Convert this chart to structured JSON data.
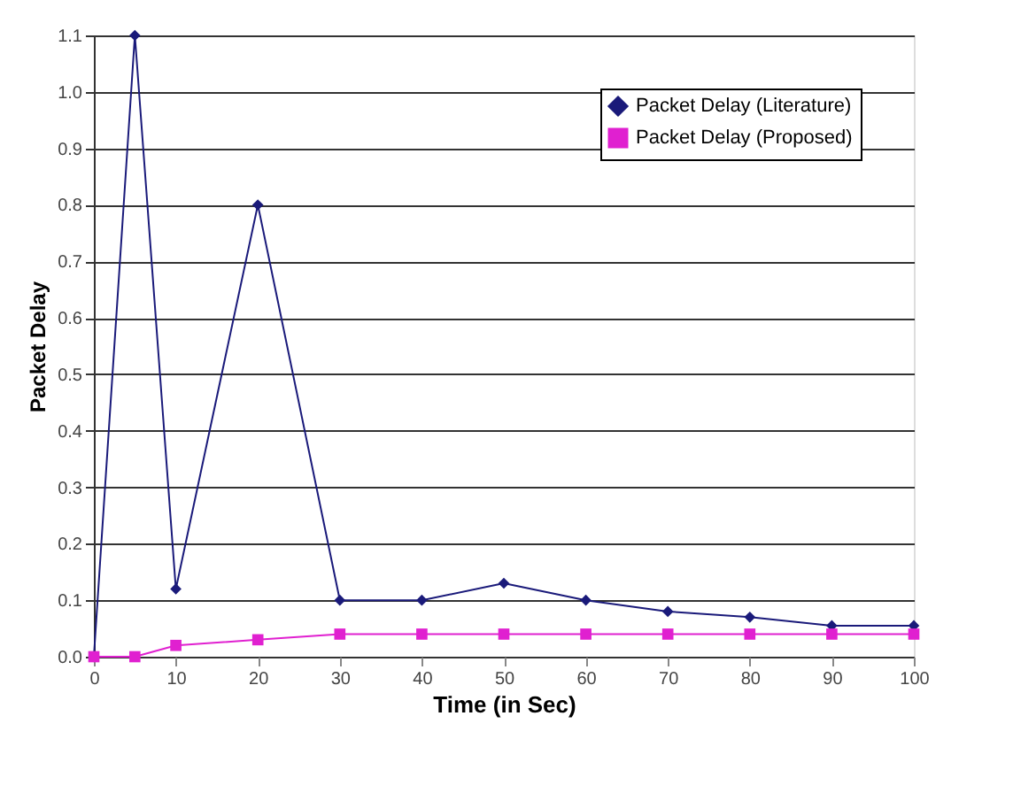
{
  "chart_data": {
    "type": "line",
    "xlabel": "Time (in Sec)",
    "ylabel": "Packet Delay",
    "xlim": [
      0,
      100
    ],
    "xticks": [
      0,
      10,
      20,
      30,
      40,
      50,
      60,
      70,
      80,
      90,
      100
    ],
    "ylim": [
      0,
      1.1
    ],
    "yticks": [
      {
        "value": 0,
        "label": "0.0"
      },
      0.1,
      0.2,
      0.3,
      0.4,
      0.5,
      0.6,
      0.7,
      0.8,
      0.9,
      {
        "value": 1,
        "label": "1.0"
      },
      1.1
    ],
    "grid": "y",
    "legend": "top right",
    "series": [
      {
        "name": "Packet Delay (Literature)",
        "color": "#1a1a7a",
        "marker": "diamond",
        "x": [
          0,
          5,
          10,
          20,
          30,
          40,
          50,
          60,
          70,
          80,
          90,
          100
        ],
        "values": [
          0,
          1.1,
          0.12,
          0.8,
          0.1,
          0.1,
          0.13,
          0.1,
          0.08,
          0.07,
          0.055,
          0.055
        ]
      },
      {
        "name": "Packet Delay (Proposed)",
        "color": "#e020d0",
        "marker": "square",
        "x": [
          0,
          5,
          10,
          20,
          30,
          40,
          50,
          60,
          70,
          80,
          90,
          100
        ],
        "values": [
          0,
          0,
          0.02,
          0.03,
          0.04,
          0.04,
          0.04,
          0.04,
          0.04,
          0.04,
          0.04,
          0.04
        ]
      }
    ]
  }
}
